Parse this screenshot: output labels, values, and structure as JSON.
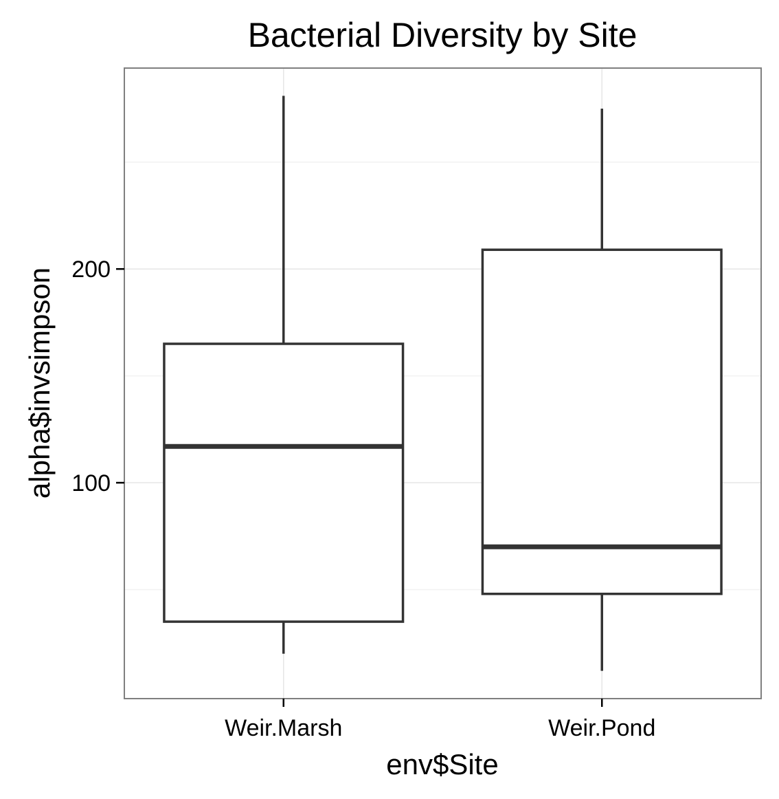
{
  "chart_data": {
    "type": "boxplot",
    "title": "Bacterial Diversity by Site",
    "xlabel": "env$Site",
    "ylabel": "alpha$invsimpson",
    "categories": [
      "Weir.Marsh",
      "Weir.Pond"
    ],
    "boxes": [
      {
        "category": "Weir.Marsh",
        "whisker_low": 20,
        "q1": 35,
        "median": 117,
        "q3": 165,
        "whisker_high": 281
      },
      {
        "category": "Weir.Pond",
        "whisker_low": 12,
        "q1": 48,
        "median": 70,
        "q3": 209,
        "whisker_high": 275
      }
    ],
    "yticks": [
      100,
      200
    ],
    "ylim": [
      -1,
      294
    ],
    "grid": true,
    "legend": "none"
  }
}
